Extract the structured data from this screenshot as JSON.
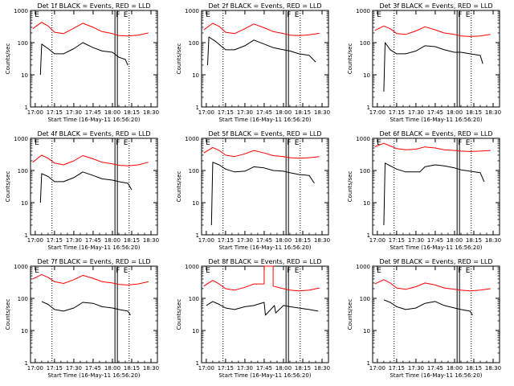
{
  "figure": {
    "start_time_label": "Start Time (16-May-11 16:56:20)"
  },
  "chart_data": [
    {
      "type": "line",
      "title": "Det 1f BLACK = Events, RED = LLD",
      "xlabel": "Start Time (16-May-11 16:56:20)",
      "ylabel": "Counts/sec",
      "yscale": "log",
      "ylim": [
        1,
        1000
      ],
      "xticks": [
        "17:00",
        "17:15",
        "17:30",
        "17:45",
        "18:00",
        "18:15",
        "18:30"
      ],
      "yticks": [
        "1",
        "10",
        "100",
        "1000"
      ],
      "markers": [
        {
          "label": "E",
          "time": "16:59"
        },
        {
          "label": "F",
          "time": "18:02"
        },
        {
          "label": "E",
          "time": "18:08"
        }
      ],
      "series": [
        {
          "name": "RED = LLD",
          "color": "#ff0000",
          "x": [
            "16:58",
            "17:05",
            "17:10",
            "17:15",
            "17:22",
            "17:30",
            "17:37",
            "17:45",
            "17:52",
            "18:00",
            "18:05",
            "18:12",
            "18:20",
            "18:28"
          ],
          "y": [
            270,
            430,
            330,
            210,
            190,
            280,
            400,
            300,
            220,
            190,
            165,
            160,
            170,
            200
          ]
        },
        {
          "name": "BLACK = Events",
          "color": "#000000",
          "x": [
            "17:04",
            "17:05",
            "17:10",
            "17:15",
            "17:22",
            "17:30",
            "17:37",
            "17:45",
            "17:52",
            "18:00",
            "18:05",
            "18:10",
            "18:12"
          ],
          "y": [
            10,
            90,
            65,
            45,
            45,
            65,
            100,
            70,
            55,
            50,
            35,
            30,
            20
          ]
        }
      ]
    },
    {
      "type": "line",
      "title": "Det 2f BLACK = Events, RED = LLD",
      "xlabel": "Start Time (16-May-11 16:56:20)",
      "ylabel": "Counts/sec",
      "yscale": "log",
      "ylim": [
        1,
        1000
      ],
      "xticks": [
        "17:00",
        "17:15",
        "17:30",
        "17:45",
        "18:00",
        "18:15",
        "18:30"
      ],
      "yticks": [
        "1",
        "10",
        "100",
        "1000"
      ],
      "markers": [
        {
          "label": "E",
          "time": "16:59"
        },
        {
          "label": "F",
          "time": "18:02"
        },
        {
          "label": "E",
          "time": "18:08"
        }
      ],
      "series": [
        {
          "name": "RED = LLD",
          "color": "#ff0000",
          "x": [
            "16:58",
            "17:05",
            "17:10",
            "17:15",
            "17:22",
            "17:30",
            "17:37",
            "17:45",
            "17:52",
            "18:00",
            "18:05",
            "18:12",
            "18:20",
            "18:28"
          ],
          "y": [
            250,
            400,
            320,
            210,
            190,
            270,
            380,
            290,
            220,
            190,
            170,
            165,
            175,
            195
          ]
        },
        {
          "name": "BLACK = Events",
          "color": "#000000",
          "x": [
            "17:01",
            "17:02",
            "17:07",
            "17:15",
            "17:22",
            "17:30",
            "17:37",
            "17:45",
            "17:52",
            "18:00",
            "18:05",
            "18:12",
            "18:20",
            "18:25"
          ],
          "y": [
            20,
            150,
            110,
            60,
            60,
            80,
            120,
            90,
            70,
            60,
            55,
            45,
            40,
            25
          ]
        }
      ]
    },
    {
      "type": "line",
      "title": "Det 3f BLACK = Events, RED = LLD",
      "xlabel": "Start Time (16-May-11 16:56:20)",
      "ylabel": "Counts/sec",
      "yscale": "log",
      "ylim": [
        1,
        1000
      ],
      "xticks": [
        "17:00",
        "17:15",
        "17:30",
        "17:45",
        "18:00",
        "18:15",
        "18:30"
      ],
      "yticks": [
        "1",
        "10",
        "100",
        "1000"
      ],
      "markers": [
        {
          "label": "E",
          "time": "16:59"
        },
        {
          "label": "F",
          "time": "18:02"
        },
        {
          "label": "E",
          "time": "18:08"
        }
      ],
      "series": [
        {
          "name": "RED = LLD",
          "color": "#ff0000",
          "x": [
            "16:58",
            "17:05",
            "17:10",
            "17:15",
            "17:22",
            "17:30",
            "17:37",
            "17:45",
            "17:52",
            "18:00",
            "18:05",
            "18:12",
            "18:20",
            "18:28"
          ],
          "y": [
            240,
            330,
            270,
            190,
            180,
            230,
            310,
            250,
            200,
            180,
            160,
            155,
            160,
            180
          ]
        },
        {
          "name": "BLACK = Events",
          "color": "#000000",
          "x": [
            "17:05",
            "17:06",
            "17:10",
            "17:15",
            "17:22",
            "17:30",
            "17:37",
            "17:45",
            "17:52",
            "18:00",
            "18:05",
            "18:12",
            "18:20",
            "18:22"
          ],
          "y": [
            3,
            100,
            60,
            45,
            45,
            55,
            80,
            75,
            60,
            50,
            50,
            45,
            40,
            22
          ]
        }
      ]
    },
    {
      "type": "line",
      "title": "Det 4f BLACK = Events, RED = LLD",
      "xlabel": "Start Time (16-May-11 16:56:20)",
      "ylabel": "Counts/sec",
      "yscale": "log",
      "ylim": [
        1,
        1000
      ],
      "xticks": [
        "17:00",
        "17:15",
        "17:30",
        "17:45",
        "18:00",
        "18:15",
        "18:30"
      ],
      "yticks": [
        "1",
        "10",
        "100",
        "1000"
      ],
      "markers": [
        {
          "label": "E",
          "time": "16:59"
        },
        {
          "label": "F",
          "time": "18:02"
        },
        {
          "label": "E",
          "time": "18:08"
        }
      ],
      "series": [
        {
          "name": "RED = LLD",
          "color": "#ff0000",
          "x": [
            "16:58",
            "17:05",
            "17:10",
            "17:15",
            "17:22",
            "17:30",
            "17:37",
            "17:45",
            "17:52",
            "18:00",
            "18:05",
            "18:12",
            "18:20",
            "18:28"
          ],
          "y": [
            180,
            300,
            240,
            170,
            150,
            200,
            290,
            230,
            180,
            160,
            145,
            140,
            150,
            180
          ]
        },
        {
          "name": "BLACK = Events",
          "color": "#000000",
          "x": [
            "17:04",
            "17:05",
            "17:10",
            "17:15",
            "17:22",
            "17:30",
            "17:37",
            "17:45",
            "17:52",
            "18:00",
            "18:05",
            "18:12",
            "18:15"
          ],
          "y": [
            10,
            80,
            65,
            45,
            45,
            60,
            90,
            70,
            55,
            50,
            45,
            40,
            25
          ]
        }
      ]
    },
    {
      "type": "line",
      "title": "Det 5f BLACK = Events, RED = LLD",
      "xlabel": "Start Time (16-May-11 16:56:20)",
      "ylabel": "Counts/sec",
      "yscale": "log",
      "ylim": [
        1,
        1000
      ],
      "xticks": [
        "17:00",
        "17:15",
        "17:30",
        "17:45",
        "18:00",
        "18:15",
        "18:30"
      ],
      "yticks": [
        "1",
        "10",
        "100",
        "1000"
      ],
      "markers": [
        {
          "label": "E",
          "time": "16:59"
        },
        {
          "label": "F",
          "time": "18:02"
        },
        {
          "label": "E",
          "time": "18:08"
        }
      ],
      "series": [
        {
          "name": "RED = LLD",
          "color": "#ff0000",
          "x": [
            "16:58",
            "17:05",
            "17:10",
            "17:15",
            "17:22",
            "17:30",
            "17:37",
            "17:45",
            "17:52",
            "18:00",
            "18:05",
            "18:12",
            "18:20",
            "18:28"
          ],
          "y": [
            350,
            520,
            420,
            300,
            270,
            330,
            420,
            350,
            290,
            270,
            250,
            240,
            250,
            270
          ]
        },
        {
          "name": "BLACK = Events",
          "color": "#000000",
          "x": [
            "17:04",
            "17:05",
            "17:10",
            "17:15",
            "17:22",
            "17:30",
            "17:37",
            "17:45",
            "17:52",
            "18:00",
            "18:05",
            "18:12",
            "18:20",
            "18:24"
          ],
          "y": [
            2,
            180,
            150,
            110,
            90,
            95,
            130,
            120,
            100,
            95,
            85,
            75,
            70,
            40
          ]
        }
      ]
    },
    {
      "type": "line",
      "title": "Det 6f BLACK = Events, RED = LLD",
      "xlabel": "Start Time (16-May-11 16:56:20)",
      "ylabel": "Counts/sec",
      "yscale": "log",
      "ylim": [
        1,
        1000
      ],
      "xticks": [
        "17:00",
        "17:15",
        "17:30",
        "17:45",
        "18:00",
        "18:15",
        "18:30"
      ],
      "yticks": [
        "1",
        "10",
        "100",
        "1000"
      ],
      "markers": [
        {
          "label": "E",
          "time": "16:59"
        },
        {
          "label": "F",
          "time": "18:02"
        },
        {
          "label": "E",
          "time": "18:08"
        }
      ],
      "series": [
        {
          "name": "RED = LLD",
          "color": "#ff0000",
          "x": [
            "16:58",
            "17:05",
            "17:10",
            "17:15",
            "17:22",
            "17:30",
            "17:37",
            "17:45",
            "17:52",
            "18:00",
            "18:05",
            "18:12",
            "18:20",
            "18:28"
          ],
          "y": [
            550,
            700,
            580,
            480,
            440,
            460,
            540,
            500,
            440,
            420,
            400,
            390,
            400,
            420
          ]
        },
        {
          "name": "BLACK = Events",
          "color": "#000000",
          "x": [
            "17:05",
            "17:06",
            "17:10",
            "17:15",
            "17:22",
            "17:30",
            "17:33",
            "17:37",
            "17:45",
            "17:52",
            "18:00",
            "18:05",
            "18:12",
            "18:20",
            "18:23"
          ],
          "y": [
            2,
            170,
            140,
            110,
            90,
            90,
            90,
            130,
            150,
            140,
            120,
            105,
            95,
            85,
            45
          ]
        }
      ]
    },
    {
      "type": "line",
      "title": "Det 7f BLACK = Events, RED = LLD",
      "xlabel": "Start Time (16-May-11 16:56:20)",
      "ylabel": "Counts/sec",
      "yscale": "log",
      "ylim": [
        1,
        1000
      ],
      "xticks": [
        "17:00",
        "17:15",
        "17:30",
        "17:45",
        "18:00",
        "18:15",
        "18:30"
      ],
      "yticks": [
        "1",
        "10",
        "100",
        "1000"
      ],
      "markers": [
        {
          "label": "E",
          "time": "16:59"
        },
        {
          "label": "F",
          "time": "18:02"
        },
        {
          "label": "E",
          "time": "18:08"
        }
      ],
      "series": [
        {
          "name": "RED = LLD",
          "color": "#ff0000",
          "x": [
            "16:58",
            "17:05",
            "17:10",
            "17:15",
            "17:22",
            "17:30",
            "17:37",
            "17:45",
            "17:52",
            "18:00",
            "18:05",
            "18:12",
            "18:20",
            "18:28"
          ],
          "y": [
            400,
            550,
            450,
            330,
            290,
            380,
            520,
            420,
            330,
            300,
            270,
            260,
            280,
            330
          ]
        },
        {
          "name": "BLACK = Events",
          "color": "#000000",
          "x": [
            "17:05",
            "17:10",
            "17:15",
            "17:22",
            "17:30",
            "17:37",
            "17:45",
            "17:52",
            "18:00",
            "18:05",
            "18:12",
            "18:14"
          ],
          "y": [
            80,
            65,
            45,
            40,
            50,
            75,
            70,
            55,
            50,
            45,
            40,
            30
          ]
        }
      ]
    },
    {
      "type": "line",
      "title": "Det 8f BLACK = Events, RED = LLD",
      "xlabel": "Start Time (16-May-11 16:56:20)",
      "ylabel": "Counts/sec",
      "yscale": "log",
      "ylim": [
        1,
        1000
      ],
      "xticks": [
        "17:00",
        "17:15",
        "17:30",
        "17:45",
        "18:00",
        "18:15",
        "18:30"
      ],
      "yticks": [
        "1",
        "10",
        "100",
        "1000"
      ],
      "markers": [
        {
          "label": "E",
          "time": "16:59"
        },
        {
          "label": "F",
          "time": "18:02"
        },
        {
          "label": "E",
          "time": "18:08"
        }
      ],
      "series": [
        {
          "name": "RED = LLD",
          "color": "#ff0000",
          "x": [
            "16:58",
            "17:05",
            "17:10",
            "17:15",
            "17:22",
            "17:30",
            "17:37",
            "17:45",
            "17:45",
            "17:52",
            "17:52",
            "18:00",
            "18:05",
            "18:12",
            "18:20",
            "18:28"
          ],
          "y": [
            240,
            360,
            280,
            200,
            180,
            220,
            280,
            280,
            1000,
            1000,
            240,
            200,
            180,
            170,
            180,
            210
          ]
        },
        {
          "name": "BLACK = Events",
          "color": "#000000",
          "x": [
            "17:00",
            "17:05",
            "17:10",
            "17:15",
            "17:22",
            "17:30",
            "17:37",
            "17:45",
            "17:46",
            "17:53",
            "17:54",
            "18:00",
            "18:05",
            "18:12",
            "18:20",
            "18:27"
          ],
          "y": [
            60,
            80,
            65,
            50,
            45,
            55,
            60,
            75,
            30,
            60,
            35,
            60,
            55,
            50,
            45,
            40
          ]
        }
      ]
    },
    {
      "type": "line",
      "title": "Det 9f BLACK = Events, RED = LLD",
      "xlabel": "Start Time (16-May-11 16:56:20)",
      "ylabel": "Counts/sec",
      "yscale": "log",
      "ylim": [
        1,
        1000
      ],
      "xticks": [
        "17:00",
        "17:15",
        "17:30",
        "17:45",
        "18:00",
        "18:15",
        "18:30"
      ],
      "yticks": [
        "1",
        "10",
        "100",
        "1000"
      ],
      "markers": [
        {
          "label": "E",
          "time": "16:59"
        },
        {
          "label": "F",
          "time": "18:02"
        },
        {
          "label": "E",
          "time": "18:08"
        }
      ],
      "series": [
        {
          "name": "RED = LLD",
          "color": "#ff0000",
          "x": [
            "16:58",
            "17:05",
            "17:10",
            "17:15",
            "17:22",
            "17:30",
            "17:37",
            "17:45",
            "17:52",
            "18:00",
            "18:05",
            "18:12",
            "18:20",
            "18:28"
          ],
          "y": [
            280,
            380,
            300,
            210,
            190,
            230,
            300,
            260,
            210,
            190,
            180,
            170,
            180,
            200
          ]
        },
        {
          "name": "BLACK = Events",
          "color": "#000000",
          "x": [
            "17:05",
            "17:10",
            "17:15",
            "17:22",
            "17:30",
            "17:37",
            "17:45",
            "17:52",
            "18:00",
            "18:05",
            "18:12",
            "18:14"
          ],
          "y": [
            90,
            75,
            55,
            45,
            50,
            70,
            80,
            60,
            50,
            45,
            40,
            30
          ]
        }
      ]
    }
  ]
}
